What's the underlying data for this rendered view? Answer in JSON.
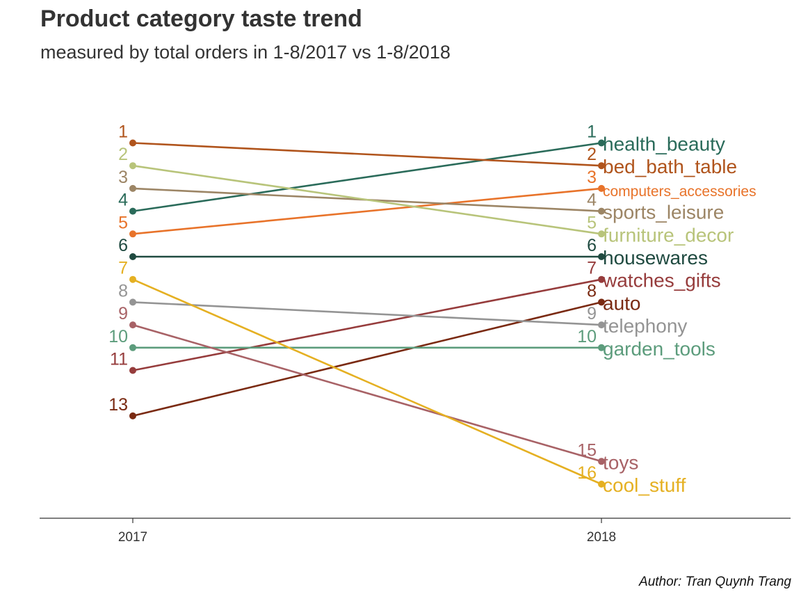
{
  "chart_data": {
    "type": "line",
    "title": "Product category taste trend",
    "subtitle": "measured by total orders in 1-8/2017 vs 1-8/2018",
    "caption": "Author: Tran Quynh Trang",
    "x": [
      "2017",
      "2018"
    ],
    "xlabel": "",
    "ylabel": "",
    "y_reversed": true,
    "ylim": [
      1,
      16
    ],
    "grid": false,
    "legend": "none (series labelled at right end)",
    "series": [
      {
        "name": "health_beauty",
        "values": [
          4,
          1
        ],
        "color": "#2a6b5a"
      },
      {
        "name": "bed_bath_table",
        "values": [
          1,
          2
        ],
        "color": "#b0541c"
      },
      {
        "name": "computers_accessories",
        "values": [
          5,
          3
        ],
        "color": "#e8732a"
      },
      {
        "name": "sports_leisure",
        "values": [
          3,
          4
        ],
        "color": "#9c8565"
      },
      {
        "name": "furniture_decor",
        "values": [
          2,
          5
        ],
        "color": "#b8c47a"
      },
      {
        "name": "housewares",
        "values": [
          6,
          6
        ],
        "color": "#1f4a40"
      },
      {
        "name": "watches_gifts",
        "values": [
          11,
          7
        ],
        "color": "#963c3c"
      },
      {
        "name": "auto",
        "values": [
          13,
          8
        ],
        "color": "#7a2a12"
      },
      {
        "name": "telephony",
        "values": [
          8,
          9
        ],
        "color": "#949494"
      },
      {
        "name": "garden_tools",
        "values": [
          10,
          10
        ],
        "color": "#5c9c7c"
      },
      {
        "name": "toys",
        "values": [
          9,
          15
        ],
        "color": "#a86266"
      },
      {
        "name": "cool_stuff",
        "values": [
          7,
          16
        ],
        "color": "#e5b022"
      }
    ]
  }
}
